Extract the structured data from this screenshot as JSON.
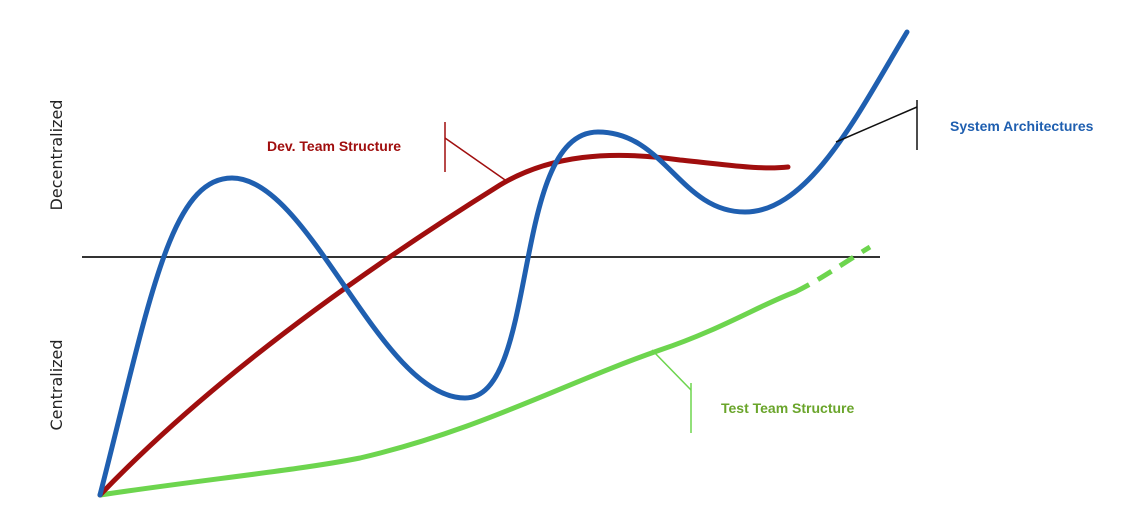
{
  "axis": {
    "upper_label": "Decentralized",
    "lower_label": "Centralized"
  },
  "curves": {
    "system": {
      "label": "System Architectures",
      "color": "#1f5fb0"
    },
    "dev": {
      "label": "Dev. Team Structure",
      "color": "#a00e0e"
    },
    "test": {
      "label": "Test Team Structure",
      "color": "#6dd54e",
      "label_color": "#6aa52b"
    }
  },
  "colors": {
    "midline": "#333333",
    "callout_dark": "#111111"
  }
}
